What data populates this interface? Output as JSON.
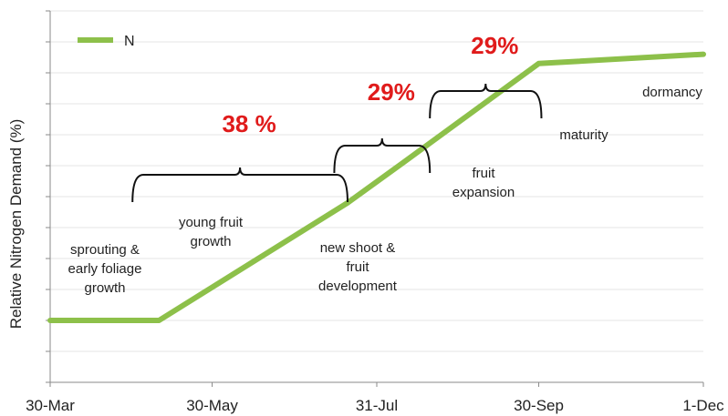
{
  "chart_data": {
    "type": "line",
    "title": "",
    "xlabel": "",
    "ylabel": "Relative Nitrogen Demand (%)",
    "x_tick_labels": [
      "30-Mar",
      "30-May",
      "31-Jul",
      "30-Sep",
      "1-Dec"
    ],
    "y_tick_labels_shown": false,
    "grid": "horizontal",
    "legend_position": "top-left",
    "series": [
      {
        "name": "N",
        "color": "#8dc04a",
        "points": [
          {
            "x": "30-Mar",
            "y": 0
          },
          {
            "x": "10-May",
            "y": 0
          },
          {
            "x": "20-Jul",
            "y": 38
          },
          {
            "x": "10-Aug",
            "y": 51
          },
          {
            "x": "30-Sep",
            "y": 83
          },
          {
            "x": "1-Dec",
            "y": 86
          }
        ]
      }
    ],
    "stage_labels": [
      {
        "lines": [
          "sprouting &",
          "early foliage",
          "growth"
        ]
      },
      {
        "lines": [
          "young fruit",
          "growth"
        ]
      },
      {
        "lines": [
          "new shoot &",
          "fruit",
          "development"
        ]
      },
      {
        "lines": [
          "fruit",
          "expansion"
        ]
      },
      {
        "lines": [
          "maturity"
        ]
      },
      {
        "lines": [
          "dormancy"
        ]
      }
    ],
    "annotations": [
      {
        "text": "38 %",
        "span": [
          "30-Apr",
          "20-Jul"
        ]
      },
      {
        "text": "29%",
        "span": [
          "15-Jul",
          "20-Aug"
        ]
      },
      {
        "text": "29%",
        "span": [
          "20-Aug",
          "1-Oct"
        ]
      }
    ]
  }
}
